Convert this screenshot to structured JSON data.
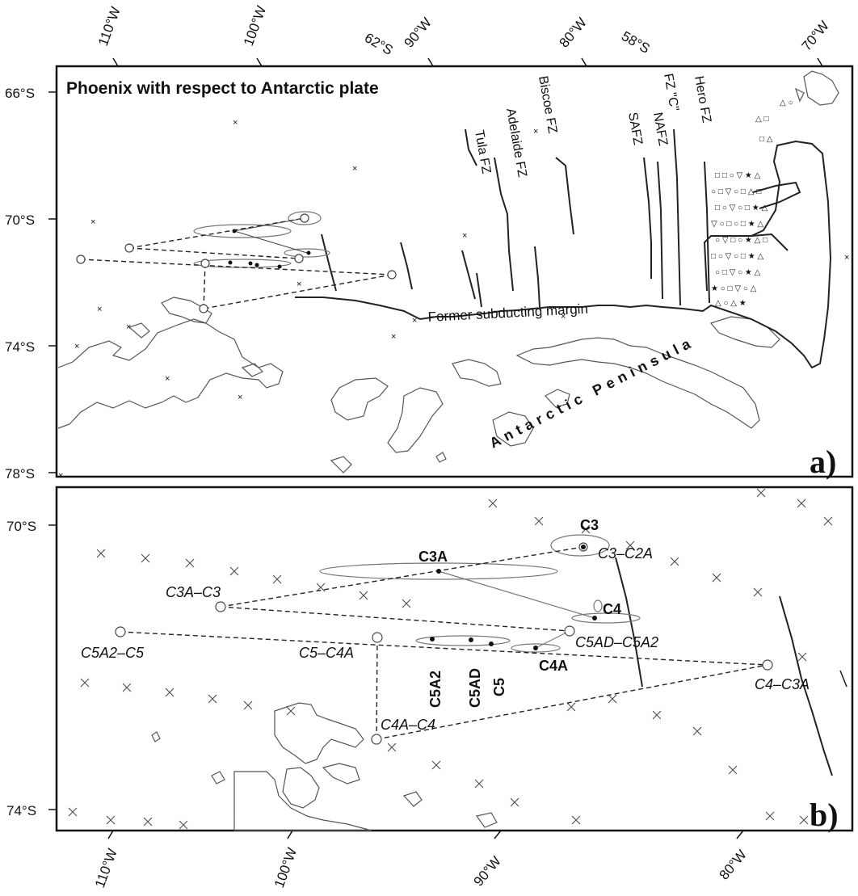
{
  "panel_a": {
    "title": "Phoenix with respect to Antarctic plate",
    "panel_label": "a)",
    "lat_labels": [
      "66°S",
      "70°S",
      "74°S",
      "78°S"
    ],
    "lon_labels_top": [
      "110°W",
      "100°W",
      "62°S",
      "90°W",
      "80°W",
      "58°S",
      "70°W"
    ],
    "fracture_zones": [
      "Tula FZ",
      "Adelaide FZ",
      "Biscoe FZ",
      "SAFZ",
      "NAFZ",
      "FZ \"C\"",
      "Hero FZ"
    ],
    "margin_label": "Former subducting margin",
    "peninsula_label": "Antarctic Peninsula"
  },
  "panel_b": {
    "panel_label": "b)",
    "lat_labels": [
      "70°S",
      "74°S"
    ],
    "lon_labels_bottom": [
      "110°W",
      "100°W",
      "90°W",
      "80°W"
    ],
    "pole_labels": [
      "C3",
      "C3A",
      "C4",
      "C4A",
      "C5",
      "C5AD",
      "C5A2"
    ],
    "stage_pole_labels": [
      "C3–C2A",
      "C3A–C3",
      "C5A2–C5",
      "C5–C4A",
      "C5AD–C5A2",
      "C4–C3A",
      "C4A–C4"
    ]
  },
  "colors": {
    "ink": "#111111",
    "coast": "#555555",
    "ellipse": "#777777"
  },
  "icons": [
    "cross-grid-marker",
    "pole-circle",
    "pole-dot",
    "magnetic-anomaly-symbols"
  ]
}
